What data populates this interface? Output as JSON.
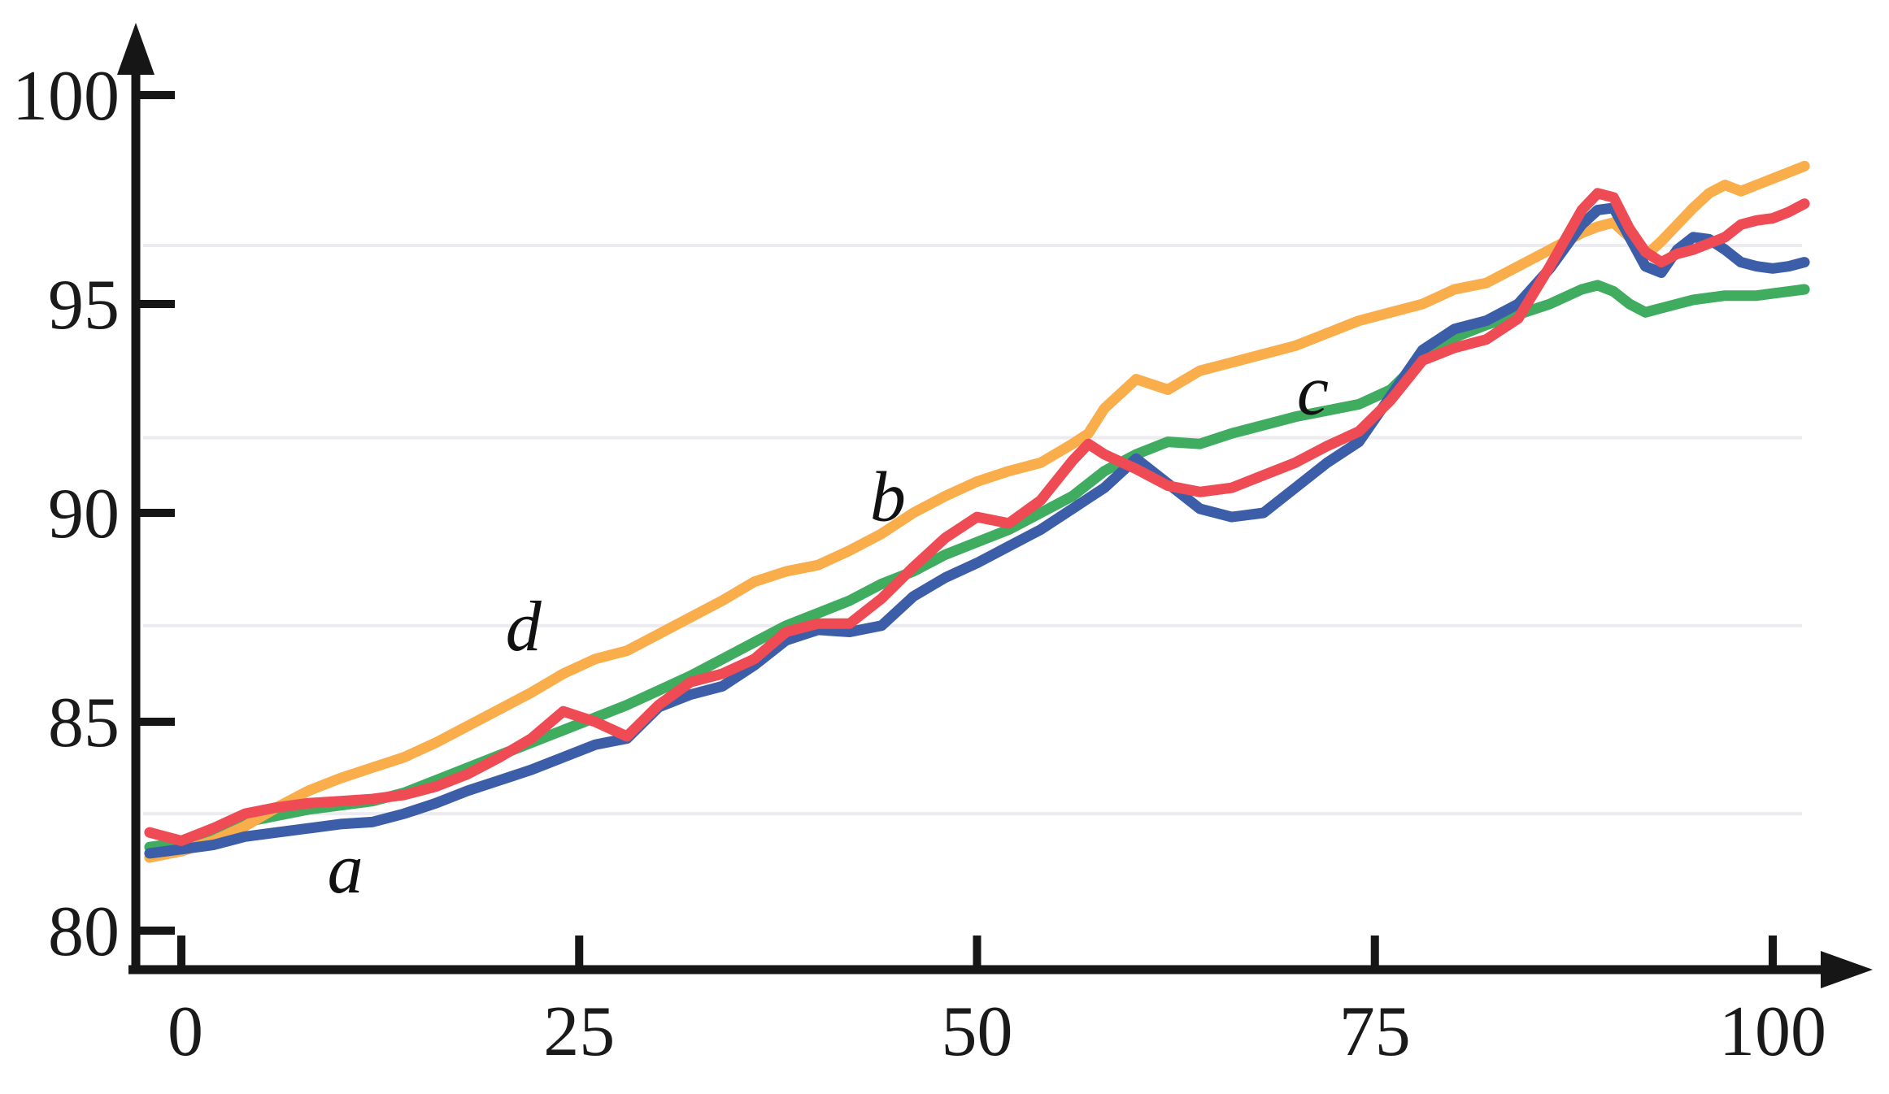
{
  "chart_data": {
    "type": "line",
    "title": "",
    "xlabel": "",
    "ylabel": "",
    "x_ticks": [
      0,
      25,
      50,
      75,
      100
    ],
    "y_ticks": [
      100,
      95,
      90,
      85,
      80
    ],
    "xlim": [
      -3,
      106
    ],
    "ylim": [
      79,
      101.6
    ],
    "grid": "horizontal-only",
    "gridlines_y": [
      96.4,
      91.8,
      87.3,
      82.8
    ],
    "axis_color": "#161616",
    "grid_color": "#ebebf0",
    "legend_position": "none",
    "x": [
      -2,
      0,
      2,
      4,
      6,
      8,
      10,
      12,
      14,
      16,
      18,
      20,
      22,
      24,
      26,
      28,
      30,
      32,
      34,
      36,
      38,
      40,
      42,
      44,
      46,
      48,
      50,
      52,
      54,
      56,
      57,
      58,
      60,
      62,
      64,
      66,
      68,
      70,
      72,
      74,
      76,
      78,
      80,
      82,
      84,
      86,
      88,
      89,
      90,
      91,
      92,
      93,
      94,
      95,
      96,
      97,
      98,
      99,
      100,
      101,
      102
    ],
    "series": [
      {
        "name": "c",
        "color": "#3fac60",
        "values": [
          82.0,
          82.1,
          82.3,
          82.6,
          82.75,
          82.9,
          83.0,
          83.1,
          83.3,
          83.6,
          83.9,
          84.2,
          84.5,
          84.8,
          85.1,
          85.4,
          85.75,
          86.1,
          86.5,
          86.9,
          87.3,
          87.6,
          87.9,
          88.3,
          88.6,
          89.0,
          89.3,
          89.6,
          90.0,
          90.4,
          90.7,
          91.0,
          91.4,
          91.7,
          91.65,
          91.9,
          92.1,
          92.3,
          92.45,
          92.6,
          92.95,
          93.7,
          94.2,
          94.5,
          94.75,
          95.0,
          95.35,
          95.45,
          95.3,
          95.0,
          94.8,
          94.9,
          95.0,
          95.1,
          95.15,
          95.2,
          95.2,
          95.2,
          95.25,
          95.3,
          95.35
        ]
      },
      {
        "name": "d",
        "color": "#f9ad4b",
        "values": [
          81.75,
          81.9,
          82.15,
          82.5,
          82.95,
          83.35,
          83.65,
          83.9,
          84.15,
          84.5,
          84.9,
          85.3,
          85.7,
          86.15,
          86.5,
          86.7,
          87.1,
          87.5,
          87.9,
          88.35,
          88.6,
          88.75,
          89.1,
          89.5,
          90.0,
          90.4,
          90.75,
          91.0,
          91.2,
          91.65,
          91.9,
          92.5,
          93.2,
          92.95,
          93.4,
          93.6,
          93.8,
          94.0,
          94.3,
          94.6,
          94.8,
          95.0,
          95.35,
          95.5,
          95.9,
          96.3,
          96.7,
          96.85,
          96.95,
          96.6,
          96.15,
          96.5,
          96.9,
          97.3,
          97.65,
          97.85,
          97.7,
          97.85,
          98.0,
          98.15,
          98.3
        ]
      },
      {
        "name": "a",
        "color": "#3c5ea8",
        "values": [
          81.85,
          81.95,
          82.05,
          82.25,
          82.35,
          82.45,
          82.55,
          82.6,
          82.8,
          83.05,
          83.35,
          83.6,
          83.85,
          84.15,
          84.45,
          84.6,
          85.35,
          85.65,
          85.85,
          86.35,
          86.95,
          87.2,
          87.15,
          87.3,
          88.0,
          88.45,
          88.8,
          89.2,
          89.6,
          90.1,
          90.35,
          90.6,
          91.3,
          90.7,
          90.1,
          89.9,
          90.0,
          90.6,
          91.2,
          91.7,
          92.8,
          93.9,
          94.4,
          94.6,
          95.0,
          95.85,
          96.9,
          97.25,
          97.3,
          96.6,
          95.9,
          95.75,
          96.3,
          96.6,
          96.55,
          96.3,
          96.0,
          95.9,
          95.85,
          95.9,
          96.0
        ]
      },
      {
        "name": "b",
        "color": "#ef4b55",
        "values": [
          82.35,
          82.15,
          82.45,
          82.8,
          82.95,
          83.05,
          83.1,
          83.15,
          83.25,
          83.45,
          83.75,
          84.15,
          84.6,
          85.25,
          85.0,
          84.65,
          85.4,
          85.95,
          86.15,
          86.5,
          87.15,
          87.35,
          87.35,
          87.95,
          88.7,
          89.4,
          89.9,
          89.75,
          90.3,
          91.25,
          91.65,
          91.4,
          91.05,
          90.65,
          90.5,
          90.6,
          90.9,
          91.2,
          91.6,
          91.95,
          92.7,
          93.65,
          93.95,
          94.15,
          94.65,
          95.9,
          97.25,
          97.65,
          97.55,
          96.8,
          96.25,
          96.0,
          96.2,
          96.3,
          96.45,
          96.6,
          96.9,
          97.0,
          97.05,
          97.2,
          97.4
        ]
      }
    ],
    "annotations": [
      {
        "text": "a",
        "x": 10.3,
        "y": 81.5
      },
      {
        "text": "b",
        "x": 44.4,
        "y": 90.4
      },
      {
        "text": "c",
        "x": 71.1,
        "y": 92.95
      },
      {
        "text": "d",
        "x": 21.5,
        "y": 87.3
      }
    ]
  }
}
